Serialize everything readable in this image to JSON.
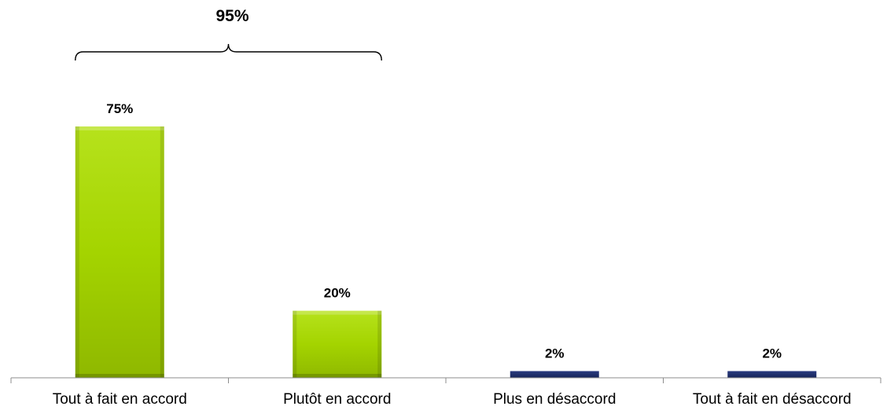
{
  "chart_data": {
    "type": "bar",
    "title": "",
    "xlabel": "",
    "ylabel": "",
    "categories": [
      "Tout à fait en accord",
      "Plutôt en accord",
      "Plus en désaccord",
      "Tout à fait en désaccord"
    ],
    "values": [
      75,
      20,
      2,
      2
    ],
    "value_labels": [
      "75%",
      "20%",
      "2%",
      "2%"
    ],
    "bar_colors": [
      "#a4d400",
      "#a4d400",
      "#1f2f6b",
      "#1f2f6b"
    ],
    "ylim": [
      0,
      100
    ],
    "grid": false,
    "group_bracket": {
      "label": "95%",
      "spans_categories": [
        0,
        1
      ]
    }
  }
}
